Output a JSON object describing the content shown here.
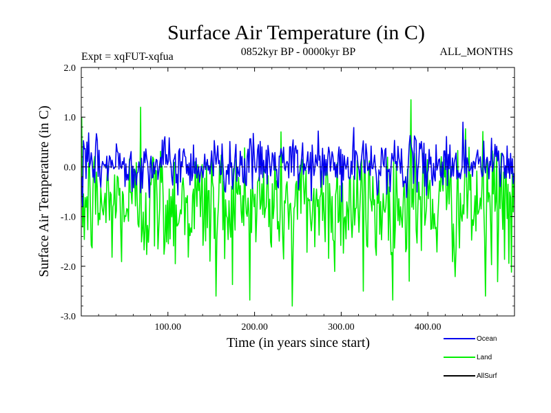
{
  "chart_data": {
    "type": "line",
    "title": "Surface Air Temperature (in C)",
    "subtitle_left": "Expt = xqFUT-xqfua",
    "subtitle_center": "0852kyr BP - 0000kyr BP",
    "subtitle_right": "ALL_MONTHS",
    "xlabel": "Time (in years since start)",
    "ylabel": "Surface Air Temperature (in C)",
    "xlim": [
      0,
      500
    ],
    "ylim": [
      -3.0,
      2.0
    ],
    "xticks": [
      100,
      200,
      300,
      400
    ],
    "xtick_labels": [
      "100.00",
      "200.00",
      "300.00",
      "400.00"
    ],
    "yticks": [
      2.0,
      1.0,
      0.0,
      -1.0,
      -2.0,
      -3.0
    ],
    "ytick_labels": [
      "2.0",
      "1.0",
      "0.0",
      "-1.0",
      "-2.0",
      "-3.0"
    ],
    "zero_line": {
      "value": 0.0,
      "style": "dashed"
    },
    "series": [
      {
        "name": "Land",
        "color": "#00ee00",
        "summary": {
          "mean": -0.75,
          "min": -2.8,
          "max": 1.35,
          "n_years": 500
        },
        "peaks": [
          {
            "x": 68,
            "y": 1.2
          },
          {
            "x": 243,
            "y": -2.8
          },
          {
            "x": 380,
            "y": 1.35
          },
          {
            "x": 466,
            "y": -2.6
          },
          {
            "x": 155,
            "y": -2.6
          },
          {
            "x": 325,
            "y": -2.5
          }
        ]
      },
      {
        "name": "Ocean",
        "color": "#0000ee",
        "summary": {
          "mean": 0.05,
          "min": -0.8,
          "max": 0.95,
          "n_years": 500
        },
        "peaks": [
          {
            "x": 1,
            "y": -0.8
          },
          {
            "x": 440,
            "y": 0.9
          },
          {
            "x": 300,
            "y": -0.7
          }
        ]
      },
      {
        "name": "AllSurf",
        "color": "#000000",
        "summary": {
          "mean": 0.0,
          "min": 0.0,
          "max": 0.0,
          "n_years": 500
        },
        "peaks": []
      }
    ],
    "legend": [
      {
        "label": "Ocean",
        "color": "#0000ee"
      },
      {
        "label": "Land",
        "color": "#00ee00"
      },
      {
        "label": "AllSurf",
        "color": "#000000"
      }
    ],
    "legend_position": "bottom-right"
  }
}
